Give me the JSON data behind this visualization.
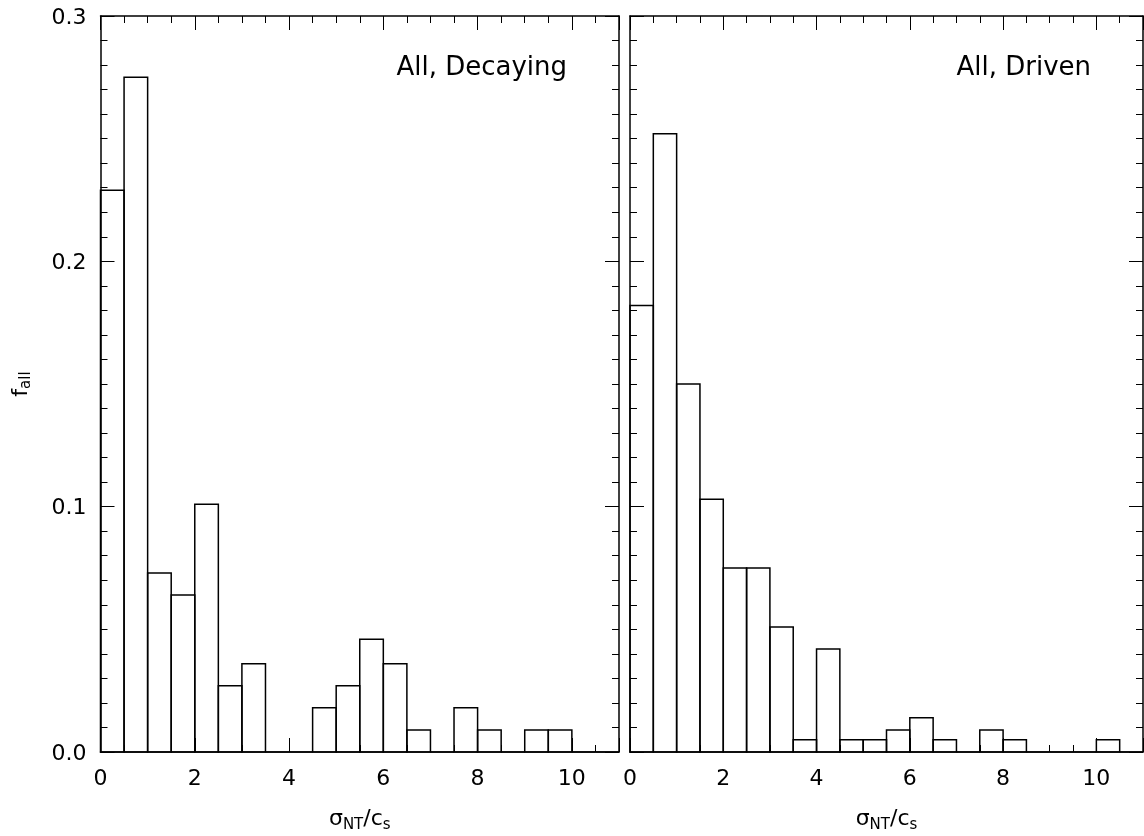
{
  "chart_data": [
    {
      "type": "histogram",
      "title": "All, Decaying",
      "xlabel": "σ$_{NT}$/c$_{s}$",
      "ylabel": "f$_{all}$",
      "color": "#000000",
      "bins": [
        0,
        0.5,
        1,
        1.5,
        2,
        2.5,
        3,
        3.5,
        4,
        4.5,
        5,
        5.5,
        6,
        6.5,
        7,
        7.5,
        8,
        8.5,
        9,
        9.5,
        10,
        10.5,
        11
      ],
      "values": [
        0.229,
        0.275,
        0.073,
        0.064,
        0.101,
        0.027,
        0.036,
        0,
        0,
        0.018,
        0.027,
        0.046,
        0.036,
        0.009,
        0,
        0.018,
        0.009,
        0,
        0.009,
        0.009,
        0,
        0
      ],
      "xlim": [
        0,
        11
      ],
      "xticks": [
        0,
        2,
        4,
        6,
        8,
        10
      ],
      "ylim": [
        0,
        0.3
      ],
      "yticks": [
        {
          "value": 0,
          "label": "0.0"
        },
        0.1,
        0.2,
        0.3
      ]
    },
    {
      "type": "histogram",
      "title": "All, Driven",
      "xlabel": "σ$_{NT}$/c$_{s}$",
      "color": "#000000",
      "bins": [
        0,
        0.5,
        1,
        1.5,
        2,
        2.5,
        3,
        3.5,
        4,
        4.5,
        5,
        5.5,
        6,
        6.5,
        7,
        7.5,
        8,
        8.5,
        9,
        9.5,
        10,
        10.5,
        11
      ],
      "values": [
        0.182,
        0.252,
        0.15,
        0.103,
        0.075,
        0.075,
        0.051,
        0.005,
        0.042,
        0.005,
        0.005,
        0.009,
        0.014,
        0.005,
        0,
        0.009,
        0.005,
        0,
        0,
        0,
        0.005,
        0
      ],
      "xlim": [
        0,
        11
      ],
      "xticks": [
        0,
        2,
        4,
        6,
        8,
        10
      ],
      "ylim": [
        0,
        0.3
      ],
      "yticks": [
        0,
        0.1,
        0.2,
        0.3
      ],
      "tick_labels": "x"
    }
  ]
}
